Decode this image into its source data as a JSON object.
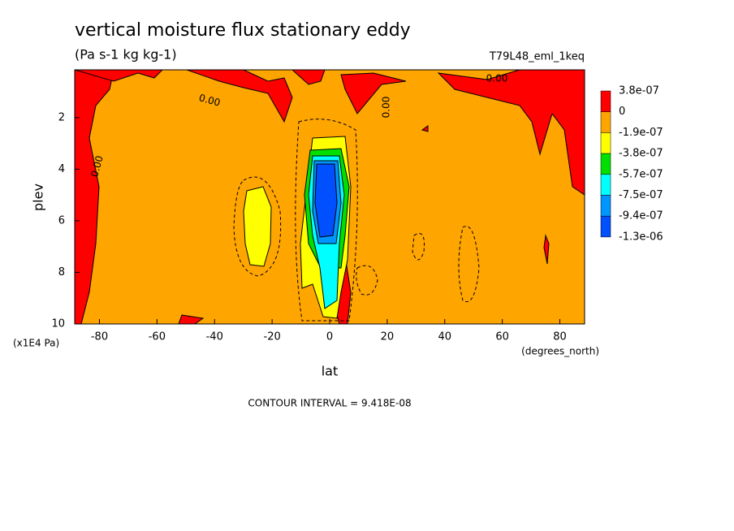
{
  "chart_data": {
    "type": "contour",
    "title": "vertical moisture flux stationary eddy",
    "subtitle": "(Pa s-1 kg kg-1)",
    "run_label": "T79L48_eml_1keq",
    "x_label": "lat",
    "y_label": "plev",
    "x_units": "(degrees_north)",
    "y_units": "(x1E4 Pa)",
    "footnote": "CONTOUR INTERVAL = 9.418E-08",
    "xlim": [
      -88.6,
      88.6
    ],
    "xticks": [
      -80,
      -60,
      -40,
      -20,
      0,
      20,
      40,
      60,
      80
    ],
    "ylim": [
      10,
      0.15
    ],
    "yticks": [
      2,
      4,
      6,
      8,
      10
    ],
    "levels": [
      {
        "value": 3.8e-07,
        "label": "3.8e-07"
      },
      0,
      {
        "value": -1.9e-07,
        "label": "-1.9e-07"
      },
      {
        "value": -3.8e-07,
        "label": "-3.8e-07"
      },
      {
        "value": -5.7e-07,
        "label": "-5.7e-07"
      },
      {
        "value": -7.5e-07,
        "label": "-7.5e-07"
      },
      {
        "value": -9.4e-07,
        "label": "-9.4e-07"
      },
      {
        "value": -1.3e-06,
        "label": "-1.3e-06"
      }
    ],
    "colors": [
      "#ff0000",
      "#ffa500",
      "#ffff00",
      "#00e000",
      "#00ffff",
      "#0096ff",
      "#0050ff"
    ],
    "contour_labels": [
      "0.00",
      "0.00",
      "0.00",
      "0.00"
    ]
  }
}
